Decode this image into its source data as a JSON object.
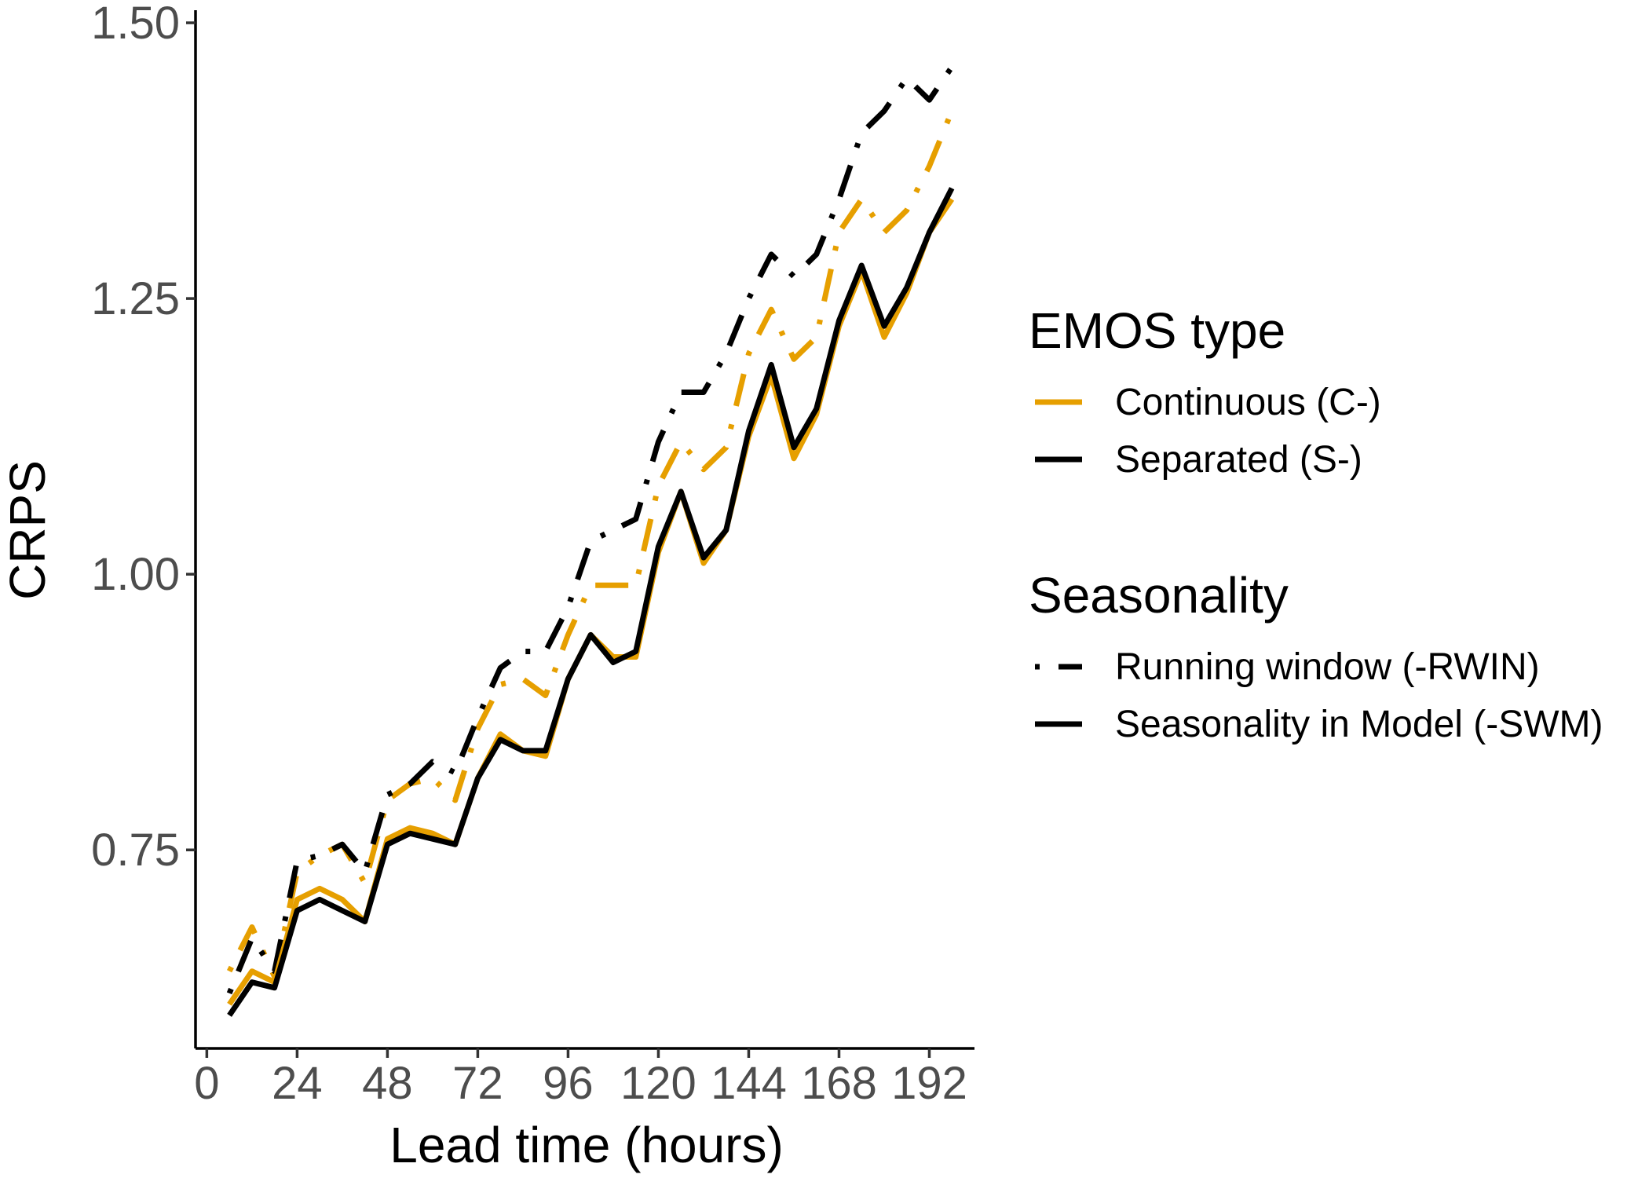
{
  "chart_data": {
    "type": "line",
    "xlabel": "Lead time (hours)",
    "ylabel": "CRPS",
    "xlim": [
      -3,
      204
    ],
    "ylim": [
      0.57,
      1.51
    ],
    "x_ticks": [
      0,
      24,
      48,
      72,
      96,
      120,
      144,
      168,
      192
    ],
    "x_tick_labels": [
      "0",
      "24",
      "48",
      "72",
      "96",
      "120",
      "144",
      "168",
      "192"
    ],
    "y_ticks": [
      0.75,
      1.0,
      1.25,
      1.5
    ],
    "y_tick_labels": [
      "0.75",
      "1.00",
      "1.25",
      "1.50"
    ],
    "grid": false,
    "legend_placement": "right",
    "colors": {
      "continuous": "#E69F00",
      "separated": "#000000"
    },
    "legends": [
      {
        "title": "EMOS type",
        "entries": [
          {
            "label": "Continuous (C-)",
            "color": "#E69F00",
            "dash": "solid"
          },
          {
            "label": "Separated (S-)",
            "color": "#000000",
            "dash": "solid"
          }
        ]
      },
      {
        "title": "Seasonality",
        "entries": [
          {
            "label": "Running window (-RWIN)",
            "color": "#000000",
            "dash": "dotdash"
          },
          {
            "label": "Seasonality in Model (-SWM)",
            "color": "#000000",
            "dash": "solid"
          }
        ]
      }
    ],
    "x": [
      6,
      12,
      18,
      24,
      30,
      36,
      42,
      48,
      54,
      60,
      66,
      72,
      78,
      84,
      90,
      96,
      102,
      108,
      114,
      120,
      126,
      132,
      138,
      144,
      150,
      156,
      162,
      168,
      174,
      180,
      186,
      192,
      198
    ],
    "series": [
      {
        "type": "Continuous",
        "seasonality": "Running window",
        "color": "#E69F00",
        "dash": "dotdash",
        "values": [
          0.64,
          0.68,
          0.635,
          0.73,
          0.745,
          0.755,
          0.72,
          0.795,
          0.81,
          0.815,
          0.795,
          0.86,
          0.9,
          0.905,
          0.89,
          0.945,
          0.99,
          0.99,
          0.99,
          1.08,
          1.12,
          1.095,
          1.115,
          1.2,
          1.24,
          1.195,
          1.215,
          1.31,
          1.34,
          1.31,
          1.33,
          1.37,
          1.42
        ]
      },
      {
        "type": "Separated",
        "seasonality": "Running window",
        "color": "#000000",
        "dash": "dotdash",
        "values": [
          0.62,
          0.67,
          0.64,
          0.74,
          0.745,
          0.755,
          0.73,
          0.8,
          0.81,
          0.83,
          0.82,
          0.87,
          0.915,
          0.93,
          0.93,
          0.97,
          1.03,
          1.04,
          1.05,
          1.12,
          1.165,
          1.165,
          1.2,
          1.25,
          1.29,
          1.27,
          1.29,
          1.34,
          1.4,
          1.42,
          1.45,
          1.43,
          1.46
        ]
      },
      {
        "type": "Continuous",
        "seasonality": "Seasonality in Model",
        "color": "#E69F00",
        "dash": "solid",
        "values": [
          0.61,
          0.64,
          0.63,
          0.705,
          0.715,
          0.705,
          0.685,
          0.76,
          0.77,
          0.765,
          0.755,
          0.815,
          0.855,
          0.84,
          0.835,
          0.905,
          0.945,
          0.925,
          0.925,
          1.02,
          1.075,
          1.01,
          1.04,
          1.125,
          1.18,
          1.105,
          1.145,
          1.225,
          1.275,
          1.215,
          1.255,
          1.31,
          1.34
        ]
      },
      {
        "type": "Separated",
        "seasonality": "Seasonality in Model",
        "color": "#000000",
        "dash": "solid",
        "values": [
          0.6,
          0.63,
          0.625,
          0.695,
          0.705,
          0.695,
          0.685,
          0.755,
          0.765,
          0.76,
          0.755,
          0.815,
          0.85,
          0.84,
          0.84,
          0.905,
          0.945,
          0.92,
          0.93,
          1.025,
          1.075,
          1.015,
          1.04,
          1.13,
          1.19,
          1.115,
          1.15,
          1.23,
          1.28,
          1.225,
          1.26,
          1.31,
          1.35
        ]
      }
    ]
  }
}
